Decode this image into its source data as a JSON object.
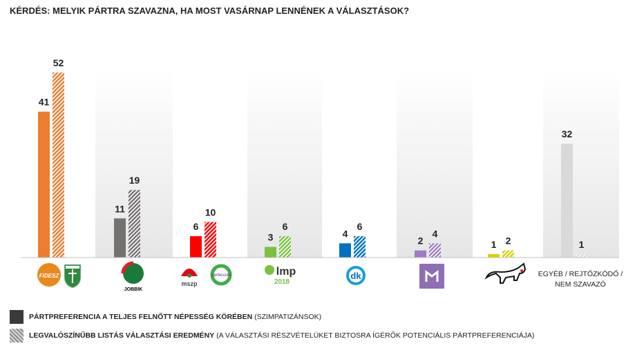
{
  "title": "KÉRDÉS: MELYIK PÁRTRA SZAVAZNA, HA MOST VASÁRNAP LENNÉNEK A VÁLASZTÁSOK?",
  "chart_data": {
    "type": "bar",
    "categories": [
      "Fidesz–KDNP",
      "Jobbik",
      "MSZP–Párbeszéd",
      "LMP",
      "DK",
      "Momentum",
      "MKKP",
      "EGYÉB / REJTŐZKÖDŐ / NEM SZAVAZÓ"
    ],
    "series": [
      {
        "name": "PÁRTPREFERENCIA A TELJES FELNŐTT NÉPESSÉG KÖRÉBEN",
        "values": [
          41,
          11,
          6,
          3,
          4,
          2,
          1,
          32
        ],
        "style": "solid"
      },
      {
        "name": "LEGVALÓSZÍNŰBB LISTÁS VÁLASZTÁSI EREDMÉNY",
        "values": [
          52,
          19,
          10,
          6,
          6,
          4,
          2,
          1
        ],
        "style": "hatched"
      }
    ],
    "colors": [
      "#ed7d31",
      "#767171",
      "#ff0000",
      "#7ac143",
      "#0070c0",
      "#9e7cc1",
      "#d4d400",
      "#d9d9d9"
    ],
    "ylim": [
      0,
      55
    ],
    "grid": false
  },
  "logos": [
    "FIDESZ",
    "KDNP",
    "JOBBIK MAGYARORSZÁGÉRT MOZGALOM",
    "mszp",
    "párbeszéd",
    "lmp 2018",
    "dk",
    "MOMENTUM",
    "MKKP"
  ],
  "other_label": "EGYÉB / REJTŐZKÖDŐ / NEM SZAVAZÓ",
  "legend": [
    {
      "bold": "PÁRTPREFERENCIA A TELJES FELNŐTT NÉPESSÉG KÖRÉBEN",
      "normal": "(SZIMPATIZÁNSOK)",
      "color": "#3a3a3a"
    },
    {
      "bold": "LEGVALÓSZÍNŰBB LISTÁS VÁLASZTÁSI EREDMÉNY",
      "normal": "(A VÁLASZTÁSI RÉSZVÉTELÜKET BIZTOSRA ÍGÉRŐK POTENCIÁLIS PÁRTPREFERENCIÁJA)",
      "color": "#9a9a9a"
    }
  ]
}
